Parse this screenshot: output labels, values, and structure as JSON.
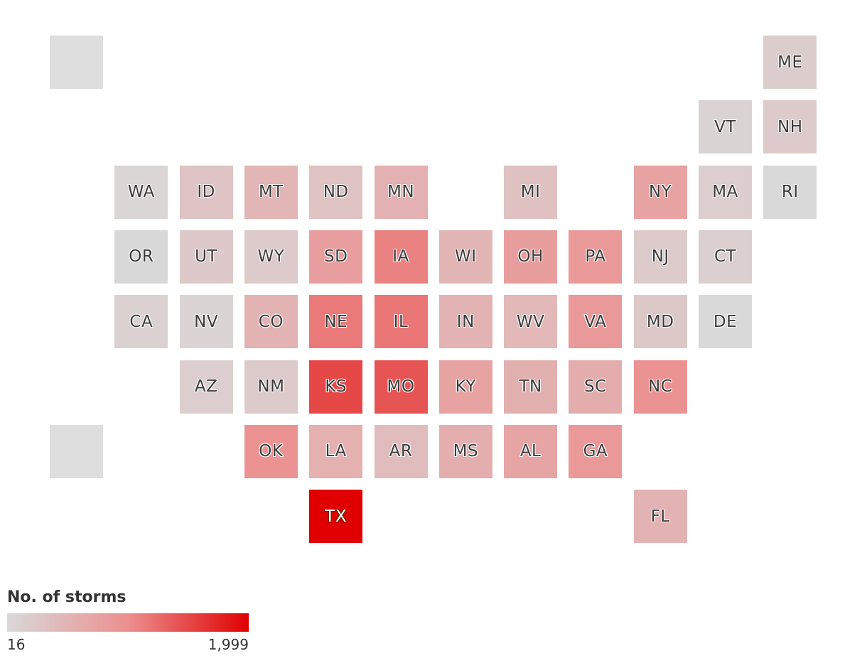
{
  "legend": {
    "title": "No. of storms",
    "min_label": "16",
    "max_label": "1,999",
    "min": 16,
    "max": 1999,
    "color_low": "#d9d9d9",
    "color_mid": "#ec8f8f",
    "color_high": "#e00000"
  },
  "chart_data": {
    "type": "heatmap",
    "subtype": "state-tile-grid-map",
    "value_label": "No. of storms",
    "scale": {
      "min": 16,
      "max": 1999
    },
    "tiles": [
      {
        "state": "",
        "col": 0,
        "row": 0,
        "value": null
      },
      {
        "state": "ME",
        "col": 11,
        "row": 0,
        "value": 180
      },
      {
        "state": "VT",
        "col": 10,
        "row": 1,
        "value": 90
      },
      {
        "state": "NH",
        "col": 11,
        "row": 1,
        "value": 200
      },
      {
        "state": "WA",
        "col": 1,
        "row": 2,
        "value": 60
      },
      {
        "state": "ID",
        "col": 2,
        "row": 2,
        "value": 300
      },
      {
        "state": "MT",
        "col": 3,
        "row": 2,
        "value": 480
      },
      {
        "state": "ND",
        "col": 4,
        "row": 2,
        "value": 330
      },
      {
        "state": "MN",
        "col": 5,
        "row": 2,
        "value": 550
      },
      {
        "state": "MI",
        "col": 7,
        "row": 2,
        "value": 340
      },
      {
        "state": "NY",
        "col": 9,
        "row": 2,
        "value": 750
      },
      {
        "state": "MA",
        "col": 10,
        "row": 2,
        "value": 160
      },
      {
        "state": "RI",
        "col": 11,
        "row": 2,
        "value": 20
      },
      {
        "state": "OR",
        "col": 1,
        "row": 3,
        "value": 35
      },
      {
        "state": "UT",
        "col": 2,
        "row": 3,
        "value": 230
      },
      {
        "state": "WY",
        "col": 3,
        "row": 3,
        "value": 210
      },
      {
        "state": "SD",
        "col": 4,
        "row": 3,
        "value": 800
      },
      {
        "state": "IA",
        "col": 5,
        "row": 3,
        "value": 1100
      },
      {
        "state": "WI",
        "col": 6,
        "row": 3,
        "value": 500
      },
      {
        "state": "OH",
        "col": 7,
        "row": 3,
        "value": 820
      },
      {
        "state": "PA",
        "col": 8,
        "row": 3,
        "value": 880
      },
      {
        "state": "NJ",
        "col": 9,
        "row": 3,
        "value": 200
      },
      {
        "state": "CT",
        "col": 10,
        "row": 3,
        "value": 150
      },
      {
        "state": "CA",
        "col": 1,
        "row": 4,
        "value": 120
      },
      {
        "state": "NV",
        "col": 2,
        "row": 4,
        "value": 80
      },
      {
        "state": "CO",
        "col": 3,
        "row": 4,
        "value": 540
      },
      {
        "state": "NE",
        "col": 4,
        "row": 4,
        "value": 1150
      },
      {
        "state": "IL",
        "col": 5,
        "row": 4,
        "value": 1180
      },
      {
        "state": "IN",
        "col": 6,
        "row": 4,
        "value": 520
      },
      {
        "state": "WV",
        "col": 7,
        "row": 4,
        "value": 460
      },
      {
        "state": "VA",
        "col": 8,
        "row": 4,
        "value": 870
      },
      {
        "state": "MD",
        "col": 9,
        "row": 4,
        "value": 250
      },
      {
        "state": "DE",
        "col": 10,
        "row": 4,
        "value": 16
      },
      {
        "state": "AZ",
        "col": 2,
        "row": 5,
        "value": 170
      },
      {
        "state": "NM",
        "col": 3,
        "row": 5,
        "value": 200
      },
      {
        "state": "KS",
        "col": 4,
        "row": 5,
        "value": 1500
      },
      {
        "state": "MO",
        "col": 5,
        "row": 5,
        "value": 1420
      },
      {
        "state": "KY",
        "col": 6,
        "row": 5,
        "value": 750
      },
      {
        "state": "TN",
        "col": 7,
        "row": 5,
        "value": 560
      },
      {
        "state": "SC",
        "col": 8,
        "row": 5,
        "value": 600
      },
      {
        "state": "NC",
        "col": 9,
        "row": 5,
        "value": 950
      },
      {
        "state": "",
        "col": 0,
        "row": 6,
        "value": null
      },
      {
        "state": "OK",
        "col": 3,
        "row": 6,
        "value": 950
      },
      {
        "state": "LA",
        "col": 4,
        "row": 6,
        "value": 570
      },
      {
        "state": "AR",
        "col": 5,
        "row": 6,
        "value": 400
      },
      {
        "state": "MS",
        "col": 6,
        "row": 6,
        "value": 590
      },
      {
        "state": "AL",
        "col": 7,
        "row": 6,
        "value": 730
      },
      {
        "state": "GA",
        "col": 8,
        "row": 6,
        "value": 890
      },
      {
        "state": "TX",
        "col": 4,
        "row": 7,
        "value": 1999
      },
      {
        "state": "FL",
        "col": 9,
        "row": 7,
        "value": 520
      }
    ]
  }
}
